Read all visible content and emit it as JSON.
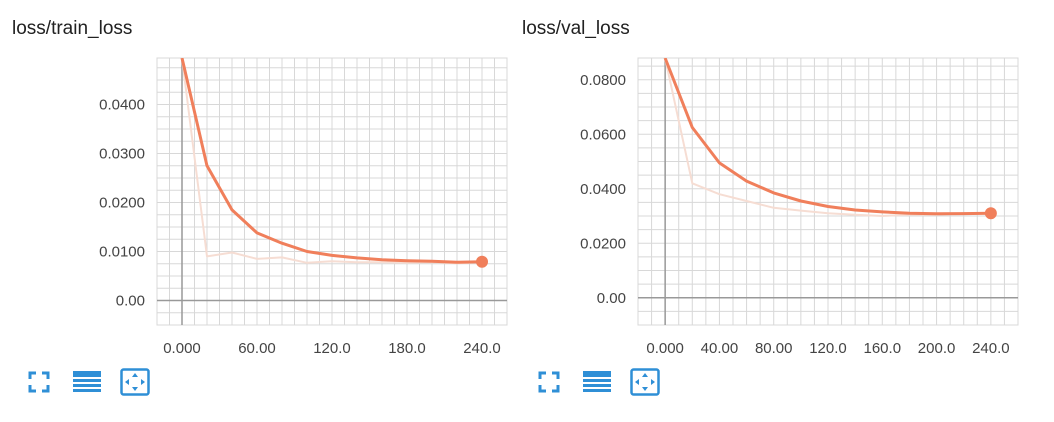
{
  "colors": {
    "smoothed": "#f07f5b",
    "raw": "#f6ddd3",
    "grid": "#d8d8d8",
    "axis": "#999999",
    "icon": "#2f8fd6"
  },
  "toolbar": {
    "fullscreen_icon": "fullscreen-icon",
    "data_icon": "data-table-icon",
    "fit_icon": "fit-domain-icon"
  },
  "chart_data": [
    {
      "type": "line",
      "title": "loss/train_loss",
      "xlim": [
        -20,
        260
      ],
      "ylim": [
        -0.005,
        0.0495
      ],
      "x_ticks": [
        0,
        60,
        120,
        180,
        240
      ],
      "x_tick_labels": [
        "0.000",
        "60.00",
        "120.0",
        "180.0",
        "240.0"
      ],
      "y_ticks": [
        0,
        0.01,
        0.02,
        0.03,
        0.04
      ],
      "y_tick_labels": [
        "0.00",
        "0.0100",
        "0.0200",
        "0.0300",
        "0.0400"
      ],
      "grid": true,
      "series": [
        {
          "style": "raw",
          "x": [
            0,
            20,
            40,
            60,
            80,
            100,
            120,
            140,
            160,
            180,
            200,
            220,
            240
          ],
          "y": [
            0.0495,
            0.009,
            0.0098,
            0.0085,
            0.0088,
            0.0077,
            0.008,
            0.0078,
            0.0078,
            0.0077,
            0.0078,
            0.0076,
            0.0078
          ]
        },
        {
          "style": "smoothed",
          "x": [
            0,
            20,
            40,
            60,
            80,
            100,
            120,
            140,
            160,
            180,
            200,
            220,
            240
          ],
          "y": [
            0.0495,
            0.0275,
            0.0185,
            0.0138,
            0.0117,
            0.01,
            0.0092,
            0.0087,
            0.0083,
            0.0081,
            0.008,
            0.0078,
            0.0079
          ]
        }
      ]
    },
    {
      "type": "line",
      "title": "loss/val_loss",
      "xlim": [
        -20,
        260
      ],
      "ylim": [
        -0.01,
        0.088
      ],
      "x_ticks": [
        0,
        40,
        80,
        120,
        160,
        200,
        240
      ],
      "x_tick_labels": [
        "0.000",
        "40.00",
        "80.00",
        "120.0",
        "160.0",
        "200.0",
        "240.0"
      ],
      "y_ticks": [
        0,
        0.02,
        0.04,
        0.06,
        0.08
      ],
      "y_tick_labels": [
        "0.00",
        "0.0200",
        "0.0400",
        "0.0600",
        "0.0800"
      ],
      "grid": true,
      "series": [
        {
          "style": "raw",
          "x": [
            0,
            20,
            40,
            60,
            80,
            100,
            120,
            140,
            160,
            180,
            200,
            220,
            240
          ],
          "y": [
            0.088,
            0.042,
            0.038,
            0.0355,
            0.033,
            0.032,
            0.031,
            0.0305,
            0.03,
            0.0305,
            0.0305,
            0.031,
            0.031
          ]
        },
        {
          "style": "smoothed",
          "x": [
            0,
            20,
            40,
            60,
            80,
            100,
            120,
            140,
            160,
            180,
            200,
            220,
            240
          ],
          "y": [
            0.088,
            0.0625,
            0.0495,
            0.0428,
            0.0385,
            0.0355,
            0.0335,
            0.0322,
            0.0315,
            0.031,
            0.0308,
            0.0309,
            0.031
          ]
        }
      ]
    }
  ]
}
